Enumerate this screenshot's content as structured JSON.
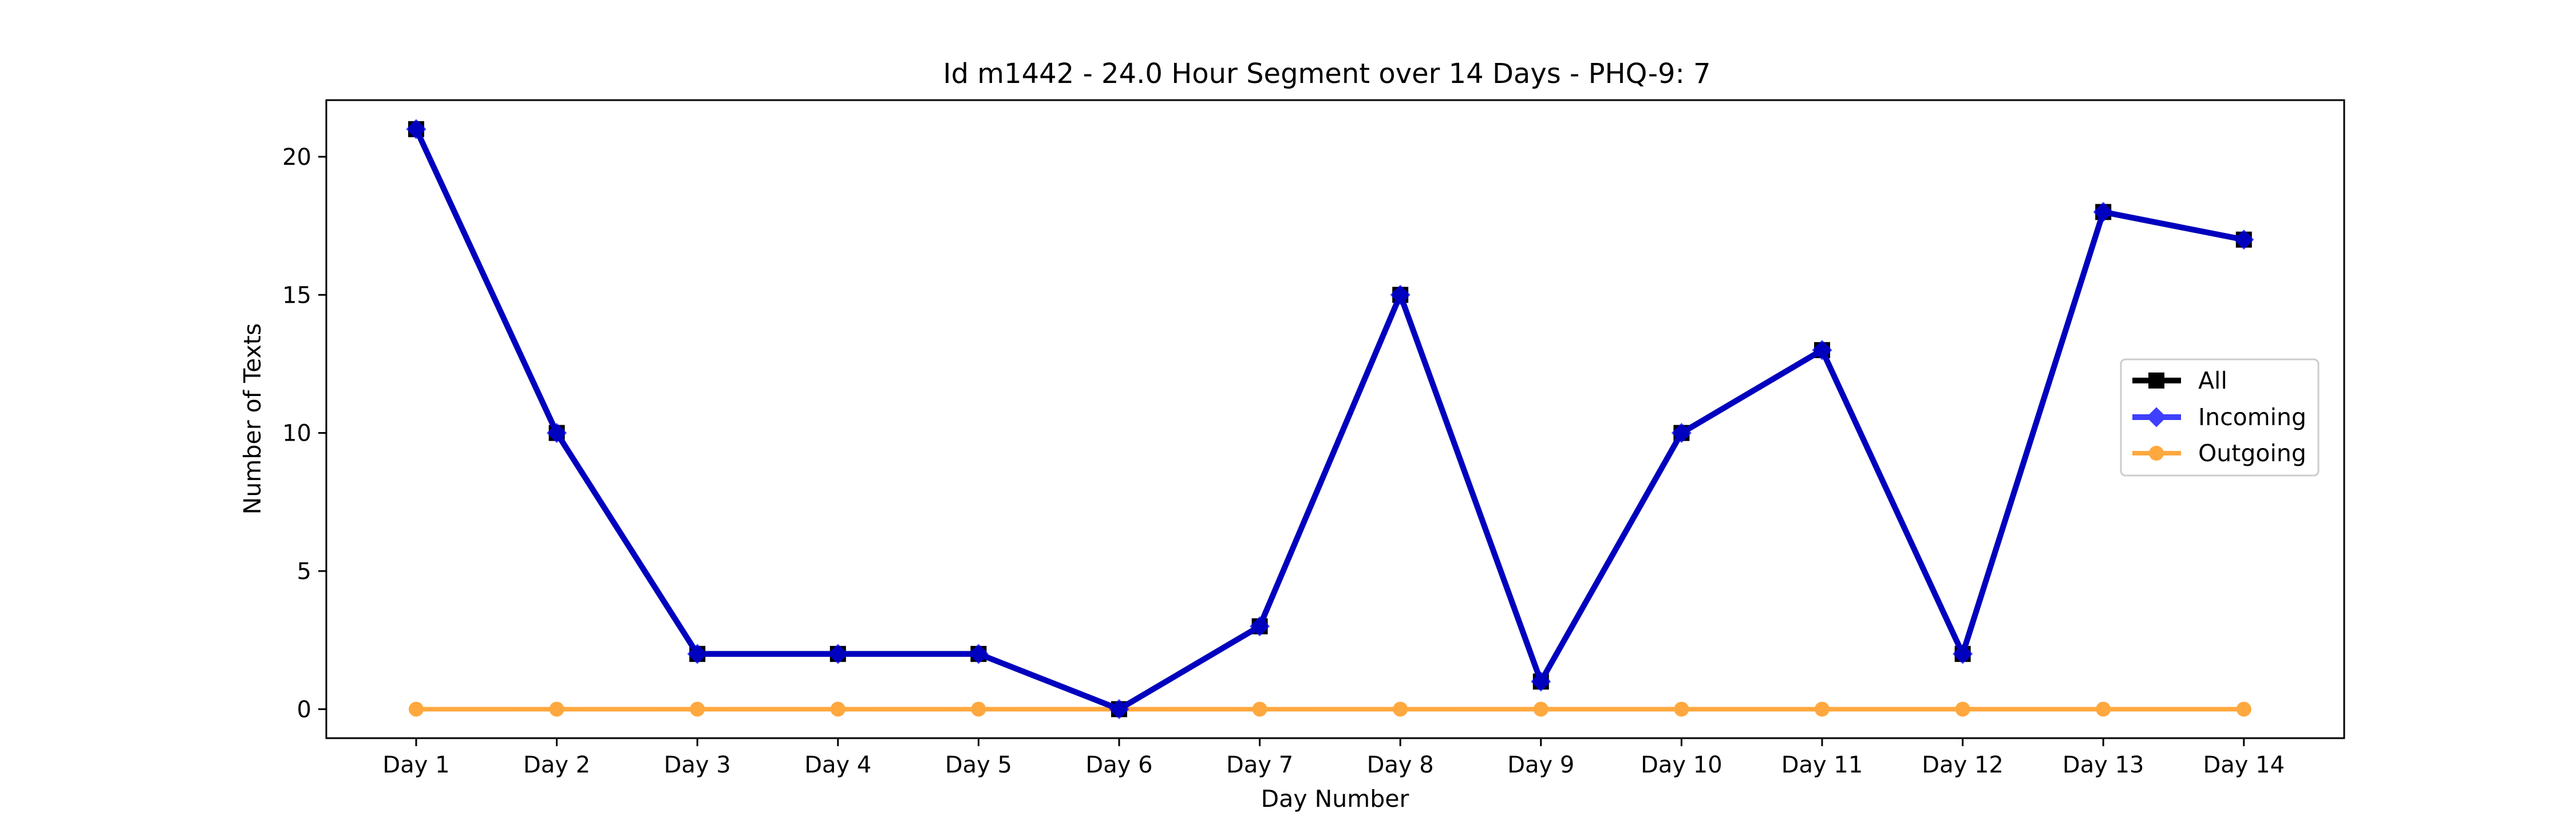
{
  "chart_data": {
    "type": "line",
    "title": "Id m1442 - 24.0 Hour Segment over 14 Days - PHQ-9: 7",
    "xlabel": "Day Number",
    "ylabel": "Number of Texts",
    "categories": [
      "Day 1",
      "Day 2",
      "Day 3",
      "Day 4",
      "Day 5",
      "Day 6",
      "Day 7",
      "Day 8",
      "Day 9",
      "Day 10",
      "Day 11",
      "Day 12",
      "Day 13",
      "Day 14"
    ],
    "yticks": [
      0,
      5,
      10,
      15,
      20
    ],
    "ylim": [
      -1.05,
      22.05
    ],
    "grid": false,
    "legend_position": "right",
    "series": [
      {
        "name": "All",
        "color": "#000000",
        "marker": "square",
        "values": [
          21,
          10,
          2,
          2,
          2,
          0,
          3,
          15,
          1,
          10,
          13,
          2,
          18,
          17
        ]
      },
      {
        "name": "Incoming",
        "color": "#0000ff",
        "marker": "diamond",
        "values": [
          21,
          10,
          2,
          2,
          2,
          0,
          3,
          15,
          1,
          10,
          13,
          2,
          18,
          17
        ]
      },
      {
        "name": "Outgoing",
        "color": "#ff8c00",
        "marker": "circle",
        "values": [
          0,
          0,
          0,
          0,
          0,
          0,
          0,
          0,
          0,
          0,
          0,
          0,
          0,
          0
        ]
      }
    ]
  }
}
